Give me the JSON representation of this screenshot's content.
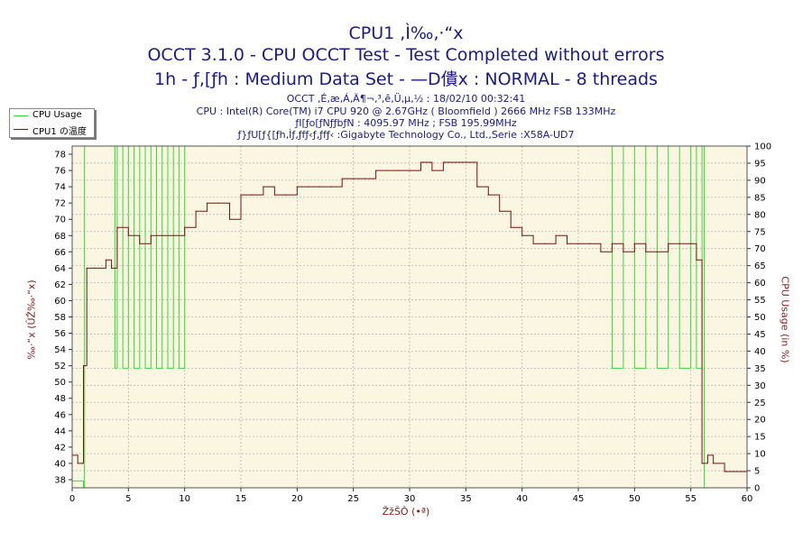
{
  "header": {
    "title1": "CPU1 ,Ì‰‚·“x",
    "title2": "OCCT 3.1.0 - CPU OCCT Test - Test Completed without errors",
    "title3": "1h - ƒ‚[ƒh : Medium Data Set - —D僓x : NORMAL - 8 threads",
    "info1": "OCCT ‚É‚æ‚Á‚Ä¶¬‚³‚ê‚Ü‚µ‚½ : 18/02/10 00:32:41",
    "info2": "CPU : Intel(R) Core(TM) i7 CPU 920 @ 2.67GHz ( Bloomfield ) 2666 MHz FSB 133MHz",
    "info3": "ƒI[ƒo[ƒNƒƒbƒN : 4095.97 MHz ; FSB 195.99MHz",
    "info4": "ƒ}ƒU[ƒ{[ƒh‚Ìƒ‚ƒfƒ‹ƒ‚ƒfƒ‹ :Gigabyte Technology Co., Ltd.,Serie :X58A-UD7"
  },
  "legend": {
    "usage_label": "CPU Usage",
    "temp_label": "CPU1 の温度"
  },
  "axes": {
    "y_left_label": "‰·“x (ÛŽ‰·“x)",
    "y_right_label": "CPU Usage (in %)",
    "x_label": "ŽžŠÔ (•ª)"
  },
  "colors": {
    "usage": "#33dd33",
    "temp": "#7a1010",
    "plot_bg": "#fbf6e1",
    "grid": "#b5b5b5",
    "text": "#1a1a8c"
  },
  "chart_data": {
    "type": "line",
    "x_range": [
      0,
      60
    ],
    "y_left_range": [
      37,
      79
    ],
    "y_right_range": [
      0,
      100
    ],
    "x_ticks": [
      0,
      5,
      10,
      15,
      20,
      25,
      30,
      35,
      40,
      45,
      50,
      55,
      60
    ],
    "y_left_ticks": [
      38,
      40,
      42,
      44,
      46,
      48,
      50,
      52,
      54,
      56,
      58,
      60,
      62,
      64,
      66,
      68,
      70,
      72,
      74,
      76,
      78
    ],
    "y_right_ticks": [
      0,
      5,
      10,
      15,
      20,
      25,
      30,
      35,
      40,
      45,
      50,
      55,
      60,
      65,
      70,
      75,
      80,
      85,
      90,
      95,
      100
    ],
    "grid": true,
    "legend_position": "top-left",
    "series": [
      {
        "name": "CPU Usage",
        "axis": "right",
        "x": [
          0,
          0.8,
          1.0,
          1.1,
          1.5,
          2.0,
          2.5,
          3.0,
          3.5,
          3.8,
          4.0,
          4.5,
          5.0,
          5.5,
          6.0,
          6.5,
          7.0,
          7.5,
          8.0,
          8.5,
          9.0,
          9.5,
          10.0,
          10.5,
          11,
          12,
          13,
          14,
          15,
          16,
          17,
          18,
          20,
          25,
          30,
          35,
          40,
          45,
          48,
          49,
          50,
          51,
          52,
          53,
          54,
          55,
          55.5,
          56,
          56.2,
          57,
          60
        ],
        "values": [
          2,
          2,
          0,
          100,
          100,
          100,
          100,
          100,
          100,
          35,
          100,
          35,
          100,
          35,
          100,
          35,
          100,
          35,
          100,
          35,
          100,
          35,
          100,
          100,
          100,
          100,
          100,
          100,
          100,
          100,
          100,
          100,
          100,
          100,
          100,
          100,
          100,
          100,
          35,
          100,
          35,
          100,
          35,
          100,
          35,
          100,
          35,
          100,
          0,
          0,
          0
        ]
      },
      {
        "name": "CPU1 の温度",
        "axis": "left",
        "x": [
          0,
          0.5,
          0.9,
          1.0,
          1.3,
          2.0,
          3.0,
          3.5,
          4.0,
          5.0,
          6.0,
          7.0,
          8.0,
          9.0,
          10.0,
          11.0,
          12.0,
          13.0,
          14.0,
          15.0,
          16.0,
          17.0,
          18.0,
          19.0,
          20.0,
          21.0,
          22.0,
          23.0,
          24.0,
          25.0,
          26.0,
          27.0,
          28.0,
          29.0,
          30.0,
          31.0,
          32.0,
          33.0,
          34.0,
          35.0,
          36.0,
          37.0,
          38.0,
          39.0,
          40.0,
          41.0,
          42.0,
          43.0,
          44.0,
          45.0,
          46.0,
          47.0,
          48.0,
          49.0,
          50.0,
          51.0,
          52.0,
          53.0,
          54.0,
          55.0,
          55.5,
          56.0,
          56.5,
          57.0,
          57.5,
          58.0,
          59.0,
          60.0
        ],
        "values": [
          41,
          40,
          40,
          52,
          64,
          64,
          65,
          64,
          69,
          68,
          67,
          68,
          68,
          68,
          69,
          71,
          72,
          72,
          70,
          73,
          73,
          74,
          73,
          73,
          74,
          74,
          74,
          74,
          75,
          75,
          75,
          76,
          76,
          76,
          76,
          77,
          76,
          77,
          77,
          77,
          74,
          73,
          71,
          69,
          68,
          67,
          67,
          68,
          67,
          67,
          67,
          66,
          67,
          66,
          67,
          66,
          66,
          67,
          67,
          67,
          65,
          40,
          41,
          40,
          40,
          39,
          39,
          39
        ]
      }
    ]
  }
}
